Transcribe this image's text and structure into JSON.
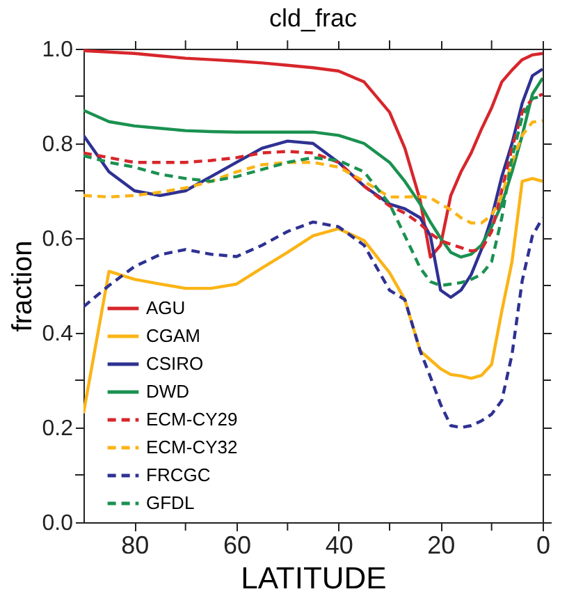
{
  "chart_data": {
    "type": "line",
    "title": "cld_frac",
    "xlabel": "LATITUDE",
    "ylabel": "fraction",
    "x": [
      90,
      85,
      80,
      75,
      70,
      65,
      60,
      55,
      50,
      45,
      40,
      35,
      30,
      27,
      24,
      22,
      20,
      18,
      16,
      14,
      12,
      10,
      8,
      6,
      4,
      2,
      0
    ],
    "xlim": [
      90,
      0
    ],
    "ylim": [
      0,
      1
    ],
    "xticks": [
      80,
      {
        "value": 70,
        "label": null
      },
      60,
      {
        "value": 50,
        "label": null
      },
      40,
      {
        "value": 30,
        "label": null
      },
      20,
      {
        "value": 10,
        "label": null
      },
      0
    ],
    "yticks": [
      {
        "value": 0,
        "label": "0.0"
      },
      {
        "value": 0.1,
        "label": null
      },
      0.2,
      {
        "value": 0.3,
        "label": null
      },
      0.4,
      {
        "value": 0.5,
        "label": null
      },
      0.6,
      {
        "value": 0.7,
        "label": null
      },
      0.8,
      {
        "value": 0.9,
        "label": null
      },
      {
        "value": 1,
        "label": "1.0"
      }
    ],
    "grid": false,
    "legend": "bottom left",
    "marker": "none",
    "series": [
      {
        "name": "AGU",
        "color": "#d7262b",
        "line_style": "solid",
        "values": [
          0.996,
          0.993,
          0.99,
          0.985,
          0.98,
          0.977,
          0.974,
          0.97,
          0.965,
          0.96,
          0.953,
          0.93,
          0.866,
          0.79,
          0.68,
          0.56,
          0.585,
          0.69,
          0.74,
          0.78,
          0.83,
          0.875,
          0.93,
          0.955,
          0.977,
          0.987,
          0.99
        ]
      },
      {
        "name": "CGAM",
        "color": "#fbb416",
        "line_style": "solid",
        "values": [
          0.23,
          0.53,
          0.513,
          0.503,
          0.494,
          0.494,
          0.503,
          0.537,
          0.57,
          0.605,
          0.62,
          0.595,
          0.527,
          0.47,
          0.362,
          0.343,
          0.324,
          0.312,
          0.309,
          0.304,
          0.31,
          0.333,
          0.446,
          0.55,
          0.72,
          0.726,
          0.72
        ]
      },
      {
        "name": "CSIRO",
        "color": "#2e3192",
        "line_style": "solid",
        "values": [
          0.817,
          0.74,
          0.7,
          0.69,
          0.7,
          0.73,
          0.76,
          0.79,
          0.805,
          0.8,
          0.76,
          0.71,
          0.672,
          0.662,
          0.643,
          0.605,
          0.49,
          0.475,
          0.49,
          0.523,
          0.576,
          0.643,
          0.73,
          0.8,
          0.885,
          0.943,
          0.957
        ]
      },
      {
        "name": "DWD",
        "color": "#1a9150",
        "line_style": "solid",
        "values": [
          0.87,
          0.846,
          0.837,
          0.832,
          0.827,
          0.825,
          0.824,
          0.824,
          0.824,
          0.824,
          0.817,
          0.8,
          0.76,
          0.72,
          0.672,
          0.634,
          0.6,
          0.57,
          0.56,
          0.566,
          0.585,
          0.624,
          0.672,
          0.74,
          0.817,
          0.904,
          0.938
        ]
      },
      {
        "name": "ECM-CY29",
        "color": "#d7262b",
        "line_style": "dashed",
        "values": [
          0.78,
          0.77,
          0.76,
          0.76,
          0.76,
          0.764,
          0.77,
          0.78,
          0.783,
          0.78,
          0.76,
          0.71,
          0.668,
          0.653,
          0.63,
          0.61,
          0.595,
          0.587,
          0.58,
          0.573,
          0.576,
          0.614,
          0.7,
          0.79,
          0.866,
          0.895,
          0.904
        ]
      },
      {
        "name": "ECM-CY32",
        "color": "#fbb416",
        "line_style": "dashed",
        "values": [
          0.69,
          0.687,
          0.69,
          0.697,
          0.706,
          0.72,
          0.74,
          0.755,
          0.76,
          0.76,
          0.75,
          0.72,
          0.687,
          0.687,
          0.688,
          0.685,
          0.672,
          0.66,
          0.643,
          0.632,
          0.632,
          0.648,
          0.69,
          0.76,
          0.817,
          0.845,
          0.848
        ]
      },
      {
        "name": "FRCGC",
        "color": "#2e3192",
        "line_style": "dashed",
        "values": [
          0.455,
          0.5,
          0.54,
          0.565,
          0.576,
          0.566,
          0.561,
          0.585,
          0.614,
          0.634,
          0.624,
          0.585,
          0.49,
          0.47,
          0.362,
          0.307,
          0.249,
          0.204,
          0.2,
          0.204,
          0.214,
          0.228,
          0.257,
          0.354,
          0.51,
          0.605,
          0.643
        ]
      },
      {
        "name": "GFDL",
        "color": "#1a9150",
        "line_style": "dashed",
        "values": [
          0.774,
          0.76,
          0.75,
          0.735,
          0.726,
          0.72,
          0.73,
          0.745,
          0.76,
          0.77,
          0.764,
          0.74,
          0.672,
          0.605,
          0.537,
          0.508,
          0.5,
          0.503,
          0.506,
          0.513,
          0.523,
          0.55,
          0.643,
          0.77,
          0.856,
          0.895,
          0.9
        ]
      }
    ]
  }
}
